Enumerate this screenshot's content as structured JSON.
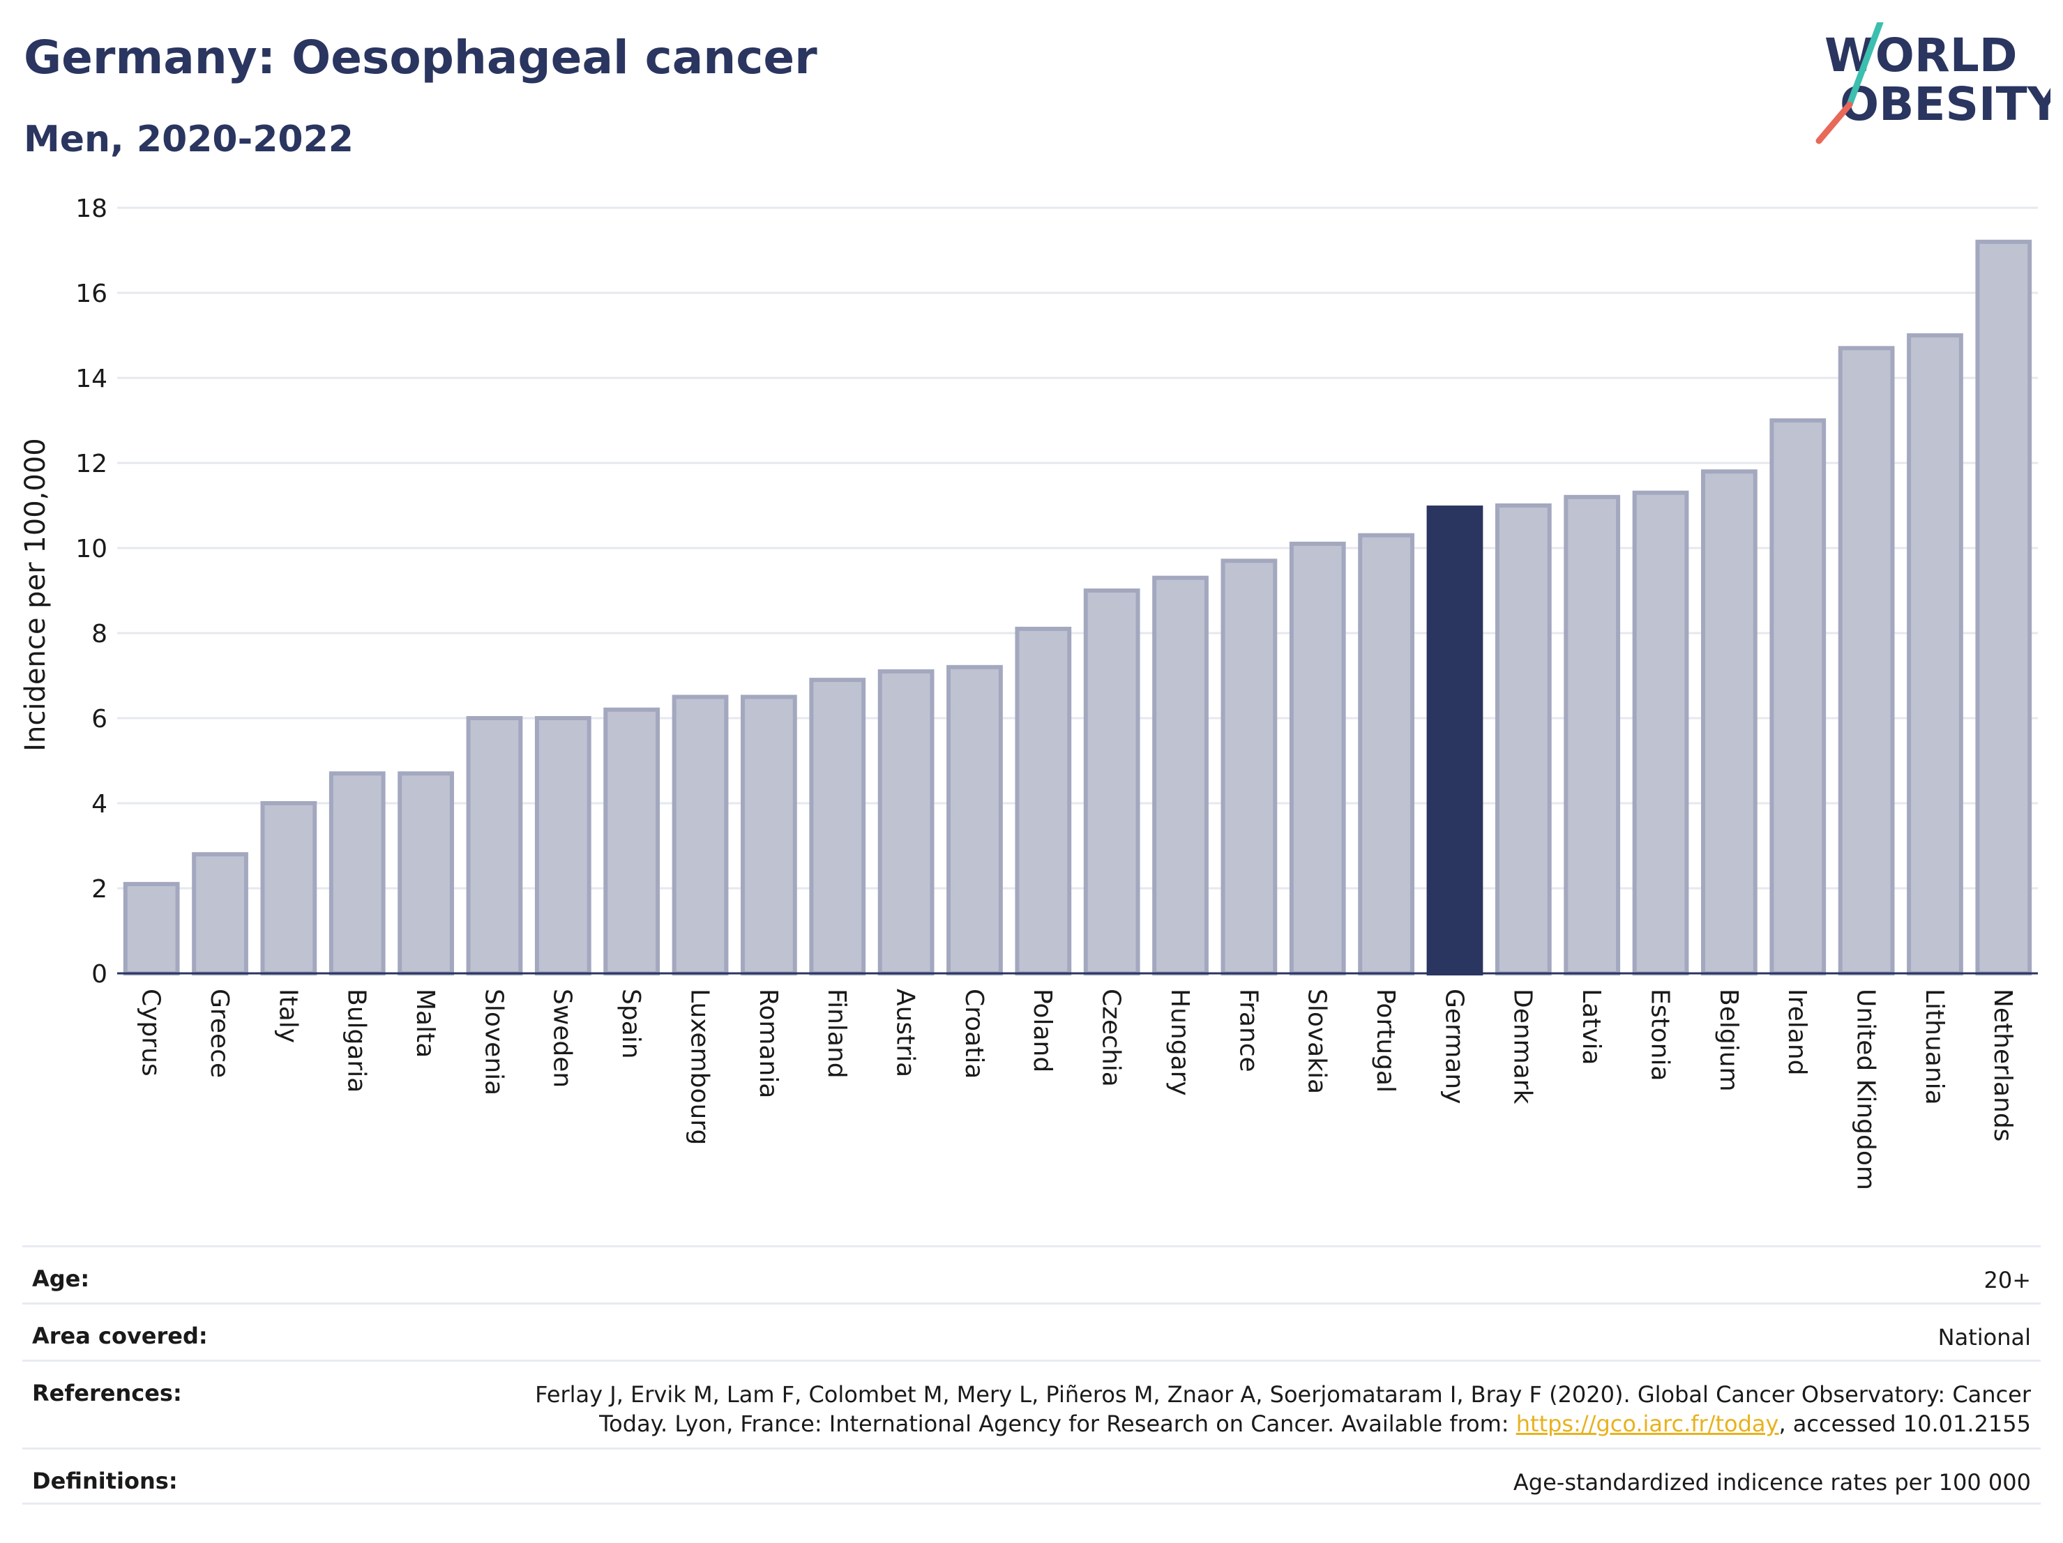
{
  "header": {
    "title": "Germany: Oesophageal cancer",
    "subtitle": "Men, 2020-2022"
  },
  "logo": {
    "line1": "WORLD",
    "line2": "OBESITY",
    "brand_color": "#2a3560",
    "slash_colors": [
      "#3cbfae",
      "#e8685a"
    ]
  },
  "chart_data": {
    "type": "bar",
    "title": "Germany: Oesophageal cancer",
    "subtitle": "Men, 2020-2022",
    "xlabel": "",
    "ylabel": "Incidence per 100,000",
    "ylim": [
      0,
      18
    ],
    "yticks": [
      0,
      2,
      4,
      6,
      8,
      10,
      12,
      14,
      16,
      18
    ],
    "grid": true,
    "highlight": "Germany",
    "colors": {
      "default": "#bfc2d1",
      "default_border": "#a3a8bf",
      "highlight": "#2a3560"
    },
    "categories": [
      "Cyprus",
      "Greece",
      "Italy",
      "Bulgaria",
      "Malta",
      "Slovenia",
      "Sweden",
      "Spain",
      "Luxembourg",
      "Romania",
      "Finland",
      "Austria",
      "Croatia",
      "Poland",
      "Czechia",
      "Hungary",
      "France",
      "Slovakia",
      "Portugal",
      "Germany",
      "Denmark",
      "Latvia",
      "Estonia",
      "Belgium",
      "Ireland",
      "United Kingdom",
      "Lithuania",
      "Netherlands"
    ],
    "values": [
      2.1,
      2.8,
      4.0,
      4.7,
      4.7,
      6.0,
      6.0,
      6.2,
      6.5,
      6.5,
      6.9,
      7.1,
      7.2,
      8.1,
      9.0,
      9.3,
      9.7,
      10.1,
      10.3,
      10.95,
      11.0,
      11.2,
      11.3,
      11.8,
      13.0,
      14.7,
      15.0,
      17.2
    ]
  },
  "meta": {
    "age": {
      "label": "Age:",
      "value": "20+"
    },
    "area": {
      "label": "Area covered:",
      "value": "National"
    },
    "references": {
      "label": "References:",
      "line1": "Ferlay J, Ervik M, Lam F, Colombet M, Mery L, Piñeros M, Znaor A, Soerjomataram I, Bray F (2020). Global Cancer Observatory: Cancer",
      "line2_prefix": "Today. Lyon, France: International Agency for Research on Cancer. Available from: ",
      "link": "https://gco.iarc.fr/today",
      "line2_suffix": ", accessed 10.01.2155"
    },
    "definitions": {
      "label": "Definitions:",
      "value": "Age-standardized indicence rates per 100 000"
    }
  }
}
